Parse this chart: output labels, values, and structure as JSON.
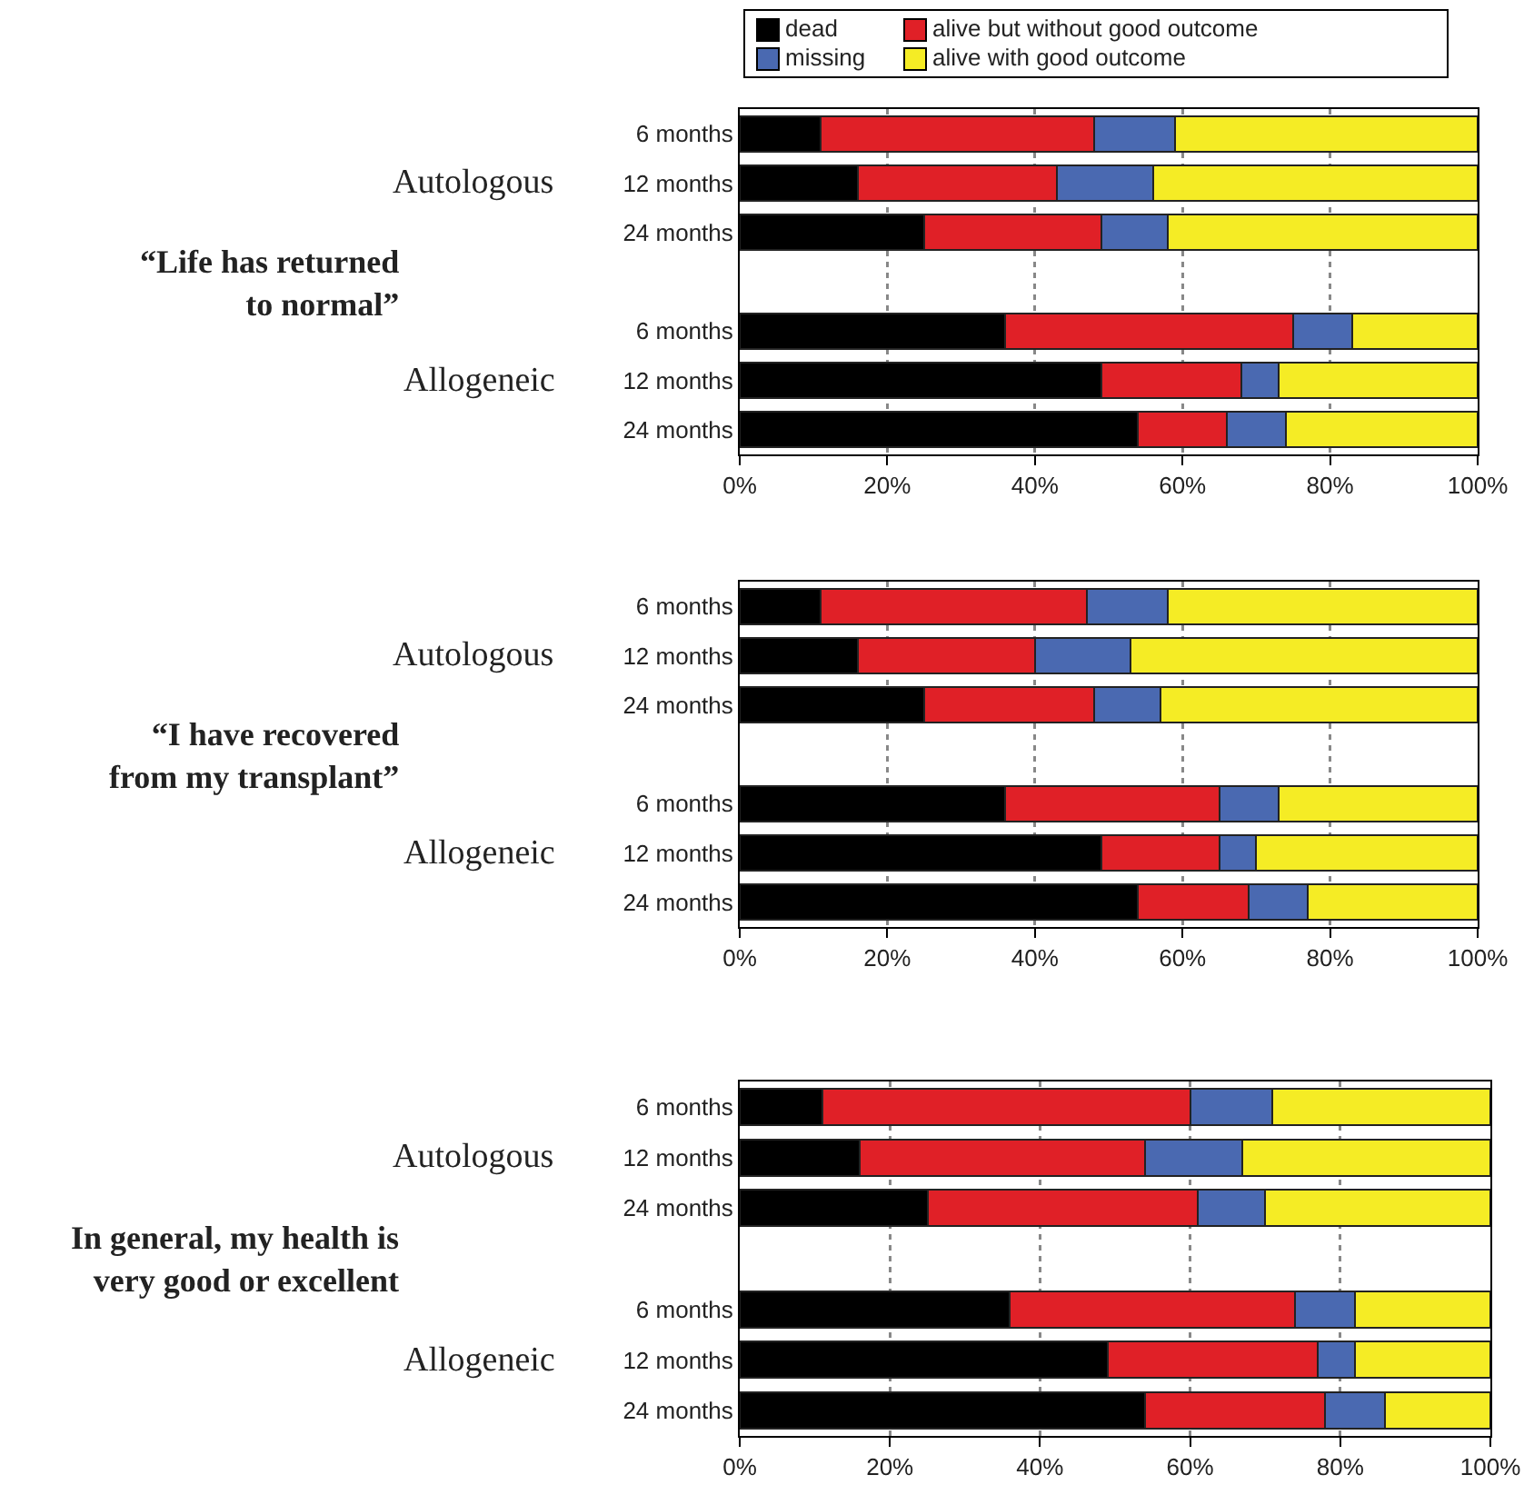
{
  "chart_data": [
    {
      "type": "bar",
      "orientation": "horizontal",
      "stacked": true,
      "ylabel": "“Life has returned\nto normal”",
      "annotations": [
        "Autologous",
        "Allogeneic"
      ],
      "categories": [
        "6 months",
        "12 months",
        "24 months",
        null,
        "6 months",
        "12 months",
        "24 months"
      ],
      "xlim": [
        0,
        100
      ],
      "xticks": [
        {
          "value": 0,
          "label": "0%"
        },
        {
          "value": 20,
          "label": "20%"
        },
        {
          "value": 40,
          "label": "40%"
        },
        {
          "value": 60,
          "label": "60%"
        },
        {
          "value": 80,
          "label": "80%"
        },
        {
          "value": 100,
          "label": "100%"
        }
      ],
      "grid": "x",
      "legend": "top",
      "series": [
        {
          "name": "dead",
          "color": "#000000",
          "values": [
            11,
            16,
            25,
            null,
            36,
            49,
            54
          ]
        },
        {
          "name": "alive but without good outcome",
          "color": "#e02027",
          "values": [
            37,
            27,
            24,
            null,
            39,
            19,
            12
          ]
        },
        {
          "name": "missing",
          "color": "#4a69b1",
          "values": [
            11,
            13,
            9,
            null,
            8,
            5,
            8
          ]
        },
        {
          "name": "alive with good outcome",
          "color": "#f5ec25",
          "values": [
            41,
            44,
            42,
            null,
            17,
            27,
            26
          ]
        }
      ]
    },
    {
      "type": "bar",
      "orientation": "horizontal",
      "stacked": true,
      "ylabel": "“I have recovered\nfrom my transplant”",
      "annotations": [
        "Autologous",
        "Allogeneic"
      ],
      "categories": [
        "6 months",
        "12 months",
        "24 months",
        null,
        "6 months",
        "12 months",
        "24 months"
      ],
      "xlim": [
        0,
        100
      ],
      "xticks": [
        {
          "value": 0,
          "label": "0%"
        },
        {
          "value": 20,
          "label": "20%"
        },
        {
          "value": 40,
          "label": "40%"
        },
        {
          "value": 60,
          "label": "60%"
        },
        {
          "value": 80,
          "label": "80%"
        },
        {
          "value": 100,
          "label": "100%"
        }
      ],
      "grid": "x",
      "legend": false,
      "series": [
        {
          "color": "#000000",
          "values": [
            11,
            16,
            25,
            null,
            36,
            49,
            54
          ]
        },
        {
          "color": "#e02027",
          "values": [
            36,
            24,
            23,
            null,
            29,
            16,
            15
          ]
        },
        {
          "color": "#4a69b1",
          "values": [
            11,
            13,
            9,
            null,
            8,
            5,
            8
          ]
        },
        {
          "color": "#f5ec25",
          "values": [
            42,
            47,
            43,
            null,
            27,
            30,
            23
          ]
        }
      ]
    },
    {
      "type": "bar",
      "orientation": "horizontal",
      "stacked": true,
      "ylabel": "In general, my health is\nvery good or excellent",
      "annotations": [
        "Autologous",
        "Allogeneic"
      ],
      "categories": [
        "6 months",
        "12 months",
        "24 months",
        null,
        "6 months",
        "12 months",
        "24 months"
      ],
      "xlim": [
        0,
        100
      ],
      "xticks": [
        {
          "value": 0,
          "label": "0%"
        },
        {
          "value": 20,
          "label": "20%"
        },
        {
          "value": 40,
          "label": "40%"
        },
        {
          "value": 60,
          "label": "60%"
        },
        {
          "value": 80,
          "label": "80%"
        },
        {
          "value": 100,
          "label": "100%"
        }
      ],
      "grid": "x",
      "legend": false,
      "series": [
        {
          "color": "#000000",
          "values": [
            11,
            16,
            25,
            null,
            36,
            49,
            54
          ]
        },
        {
          "color": "#e02027",
          "values": [
            49,
            38,
            36,
            null,
            38,
            28,
            24
          ]
        },
        {
          "color": "#4a69b1",
          "values": [
            11,
            13,
            9,
            null,
            8,
            5,
            8
          ]
        },
        {
          "color": "#f5ec25",
          "values": [
            29,
            33,
            30,
            null,
            18,
            18,
            14
          ]
        }
      ]
    }
  ]
}
